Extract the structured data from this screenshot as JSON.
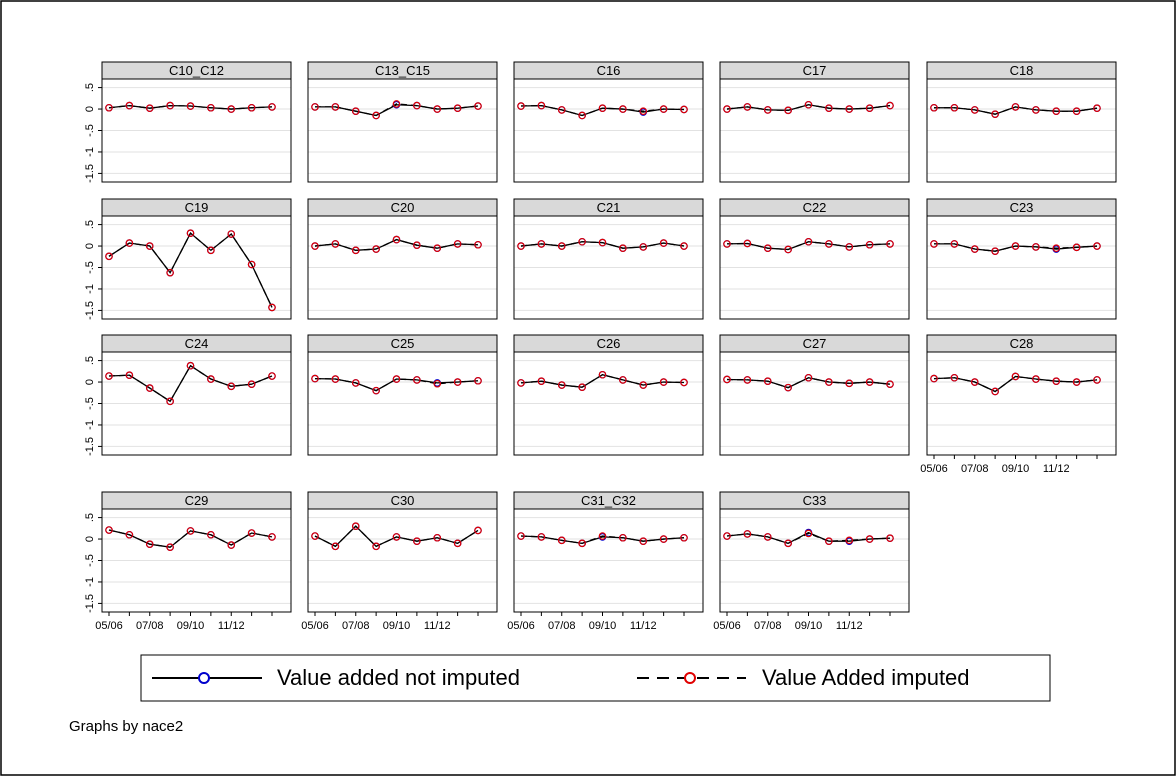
{
  "chart_data": {
    "type": "line",
    "categories": [
      "05/06",
      null,
      "07/08",
      null,
      "09/10",
      null,
      "11/12",
      null,
      null
    ],
    "ylim": [
      -1.7,
      0.7
    ],
    "yticks": [
      {
        "value": 0.5,
        "label": ".5"
      },
      0,
      {
        "value": -0.5,
        "label": "-.5"
      },
      -1,
      -1.5
    ],
    "grid": true,
    "series": [
      {
        "name": "Value added not imputed",
        "color": "#0000cc",
        "dash": "solid"
      },
      {
        "name": "Value Added imputed",
        "color": "#e00000",
        "dash": "dashed"
      }
    ],
    "facets": [
      {
        "title": "C10_C12",
        "values": [
          [
            0.03,
            0.08,
            0.02,
            0.08,
            0.07,
            0.03,
            0,
            0.03,
            0.05
          ],
          [
            0.03,
            0.08,
            0.02,
            0.08,
            0.07,
            0.03,
            0,
            0.03,
            0.05
          ]
        ]
      },
      {
        "title": "C13_C15",
        "values": [
          [
            0.05,
            0.05,
            -0.05,
            -0.15,
            0.1,
            0.08,
            0,
            0.02,
            0.07
          ],
          [
            0.05,
            0.05,
            -0.05,
            -0.15,
            0.12,
            0.08,
            0,
            0.02,
            0.07
          ]
        ]
      },
      {
        "title": "C16",
        "values": [
          [
            0.07,
            0.08,
            -0.02,
            -0.15,
            0.02,
            0,
            -0.07,
            0,
            -0.01
          ],
          [
            0.07,
            0.08,
            -0.02,
            -0.15,
            0.02,
            0,
            -0.05,
            0,
            -0.01
          ]
        ]
      },
      {
        "title": "C17",
        "values": [
          [
            0,
            0.05,
            -0.02,
            -0.03,
            0.1,
            0.02,
            0,
            0.02,
            0.08
          ],
          [
            0,
            0.05,
            -0.02,
            -0.03,
            0.1,
            0.02,
            0,
            0.02,
            0.08
          ]
        ]
      },
      {
        "title": "C18",
        "values": [
          [
            0.03,
            0.03,
            -0.02,
            -0.12,
            0.05,
            -0.02,
            -0.05,
            -0.05,
            0.02
          ],
          [
            0.03,
            0.03,
            -0.02,
            -0.12,
            0.05,
            -0.02,
            -0.05,
            -0.05,
            0.02
          ]
        ]
      },
      {
        "title": "C19",
        "values": [
          [
            -0.24,
            0.07,
            0,
            -0.62,
            0.3,
            -0.1,
            0.28,
            -0.43,
            -1.43
          ],
          [
            -0.24,
            0.07,
            0,
            -0.62,
            0.3,
            -0.1,
            0.28,
            -0.43,
            -1.43
          ]
        ]
      },
      {
        "title": "C20",
        "values": [
          [
            0,
            0.05,
            -0.1,
            -0.07,
            0.15,
            0.02,
            -0.05,
            0.05,
            0.03
          ],
          [
            0,
            0.05,
            -0.1,
            -0.07,
            0.15,
            0.02,
            -0.05,
            0.05,
            0.03
          ]
        ]
      },
      {
        "title": "C21",
        "values": [
          [
            0,
            0.05,
            0,
            0.1,
            0.08,
            -0.05,
            -0.02,
            0.07,
            0
          ],
          [
            0,
            0.05,
            0,
            0.1,
            0.08,
            -0.05,
            -0.02,
            0.07,
            0
          ]
        ]
      },
      {
        "title": "C22",
        "values": [
          [
            0.05,
            0.06,
            -0.05,
            -0.08,
            0.1,
            0.05,
            -0.02,
            0.03,
            0.05
          ],
          [
            0.05,
            0.06,
            -0.05,
            -0.08,
            0.1,
            0.05,
            -0.02,
            0.03,
            0.05
          ]
        ]
      },
      {
        "title": "C23",
        "values": [
          [
            0.05,
            0.05,
            -0.07,
            -0.12,
            0,
            -0.02,
            -0.07,
            -0.03,
            0
          ],
          [
            0.05,
            0.05,
            -0.07,
            -0.12,
            0,
            -0.02,
            -0.05,
            -0.03,
            0
          ]
        ]
      },
      {
        "title": "C24",
        "values": [
          [
            0.14,
            0.16,
            -0.14,
            -0.45,
            0.38,
            0.07,
            -0.1,
            -0.05,
            0.14
          ],
          [
            0.14,
            0.16,
            -0.14,
            -0.45,
            0.38,
            0.07,
            -0.1,
            -0.05,
            0.14
          ]
        ]
      },
      {
        "title": "C25",
        "values": [
          [
            0.08,
            0.07,
            -0.02,
            -0.2,
            0.07,
            0.05,
            -0.02,
            0,
            0.03
          ],
          [
            0.08,
            0.07,
            -0.02,
            -0.2,
            0.07,
            0.05,
            -0.04,
            0,
            0.03
          ]
        ]
      },
      {
        "title": "C26",
        "values": [
          [
            -0.02,
            0.02,
            -0.07,
            -0.12,
            0.17,
            0.05,
            -0.07,
            0,
            -0.01
          ],
          [
            -0.02,
            0.02,
            -0.07,
            -0.12,
            0.17,
            0.05,
            -0.07,
            0,
            -0.01
          ]
        ]
      },
      {
        "title": "C27",
        "values": [
          [
            0.06,
            0.05,
            0.02,
            -0.13,
            0.1,
            0,
            -0.03,
            0,
            -0.05
          ],
          [
            0.06,
            0.05,
            0.02,
            -0.13,
            0.1,
            0,
            -0.03,
            0,
            -0.05
          ]
        ]
      },
      {
        "title": "C28",
        "values": [
          [
            0.08,
            0.1,
            0,
            -0.22,
            0.13,
            0.07,
            0.02,
            0,
            0.05
          ],
          [
            0.08,
            0.1,
            0,
            -0.22,
            0.13,
            0.07,
            0.02,
            0,
            0.05
          ]
        ]
      },
      {
        "title": "C29",
        "values": [
          [
            0.21,
            0.1,
            -0.12,
            -0.19,
            0.19,
            0.1,
            -0.14,
            0.14,
            0.05
          ],
          [
            0.21,
            0.1,
            -0.12,
            -0.19,
            0.19,
            0.1,
            -0.14,
            0.14,
            0.05
          ]
        ]
      },
      {
        "title": "C30",
        "values": [
          [
            0.07,
            -0.17,
            0.3,
            -0.17,
            0.05,
            -0.05,
            0.03,
            -0.1,
            0.2
          ],
          [
            0.07,
            -0.17,
            0.3,
            -0.17,
            0.05,
            -0.05,
            0.03,
            -0.1,
            0.2
          ]
        ]
      },
      {
        "title": "C31_C32",
        "values": [
          [
            0.07,
            0.05,
            -0.03,
            -0.1,
            0.05,
            0.03,
            -0.05,
            0,
            0.03
          ],
          [
            0.07,
            0.05,
            -0.03,
            -0.1,
            0.07,
            0.03,
            -0.05,
            0,
            0.03
          ]
        ]
      },
      {
        "title": "C33",
        "values": [
          [
            0.07,
            0.12,
            0.05,
            -0.1,
            0.15,
            -0.05,
            -0.05,
            0,
            0.02
          ],
          [
            0.07,
            0.12,
            0.05,
            -0.1,
            0.13,
            -0.05,
            -0.03,
            0,
            0.02
          ]
        ]
      }
    ],
    "note": "Graphs by nace2"
  }
}
